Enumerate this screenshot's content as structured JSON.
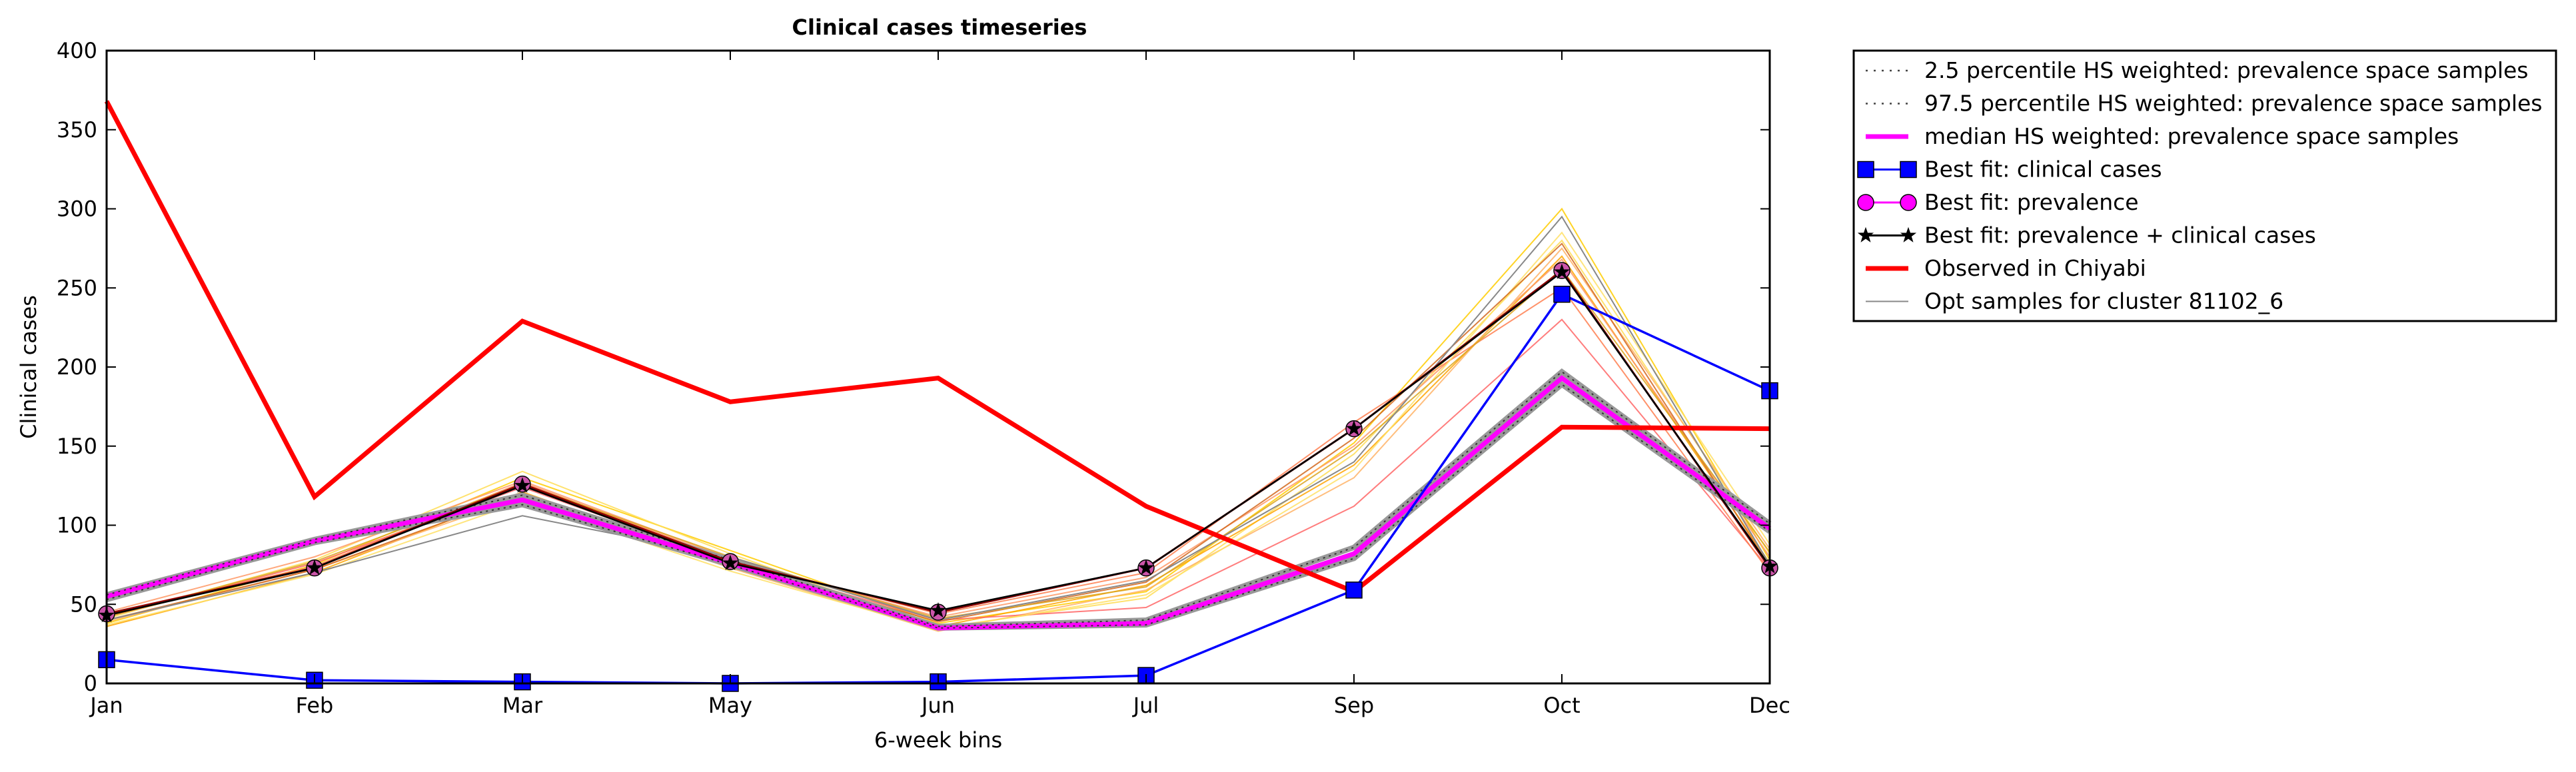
{
  "chart_data": {
    "type": "line",
    "title": "Clinical cases timeseries",
    "xlabel": "6-week bins",
    "ylabel": "Clinical cases",
    "categories": [
      "Jan",
      "Feb",
      "Mar",
      "May",
      "Jun",
      "Jul",
      "Sep",
      "Oct",
      "Dec"
    ],
    "yticks": [
      0,
      50,
      100,
      150,
      200,
      250,
      300,
      350,
      400
    ],
    "ylim": [
      0,
      400
    ],
    "grid": false,
    "legend_position": "outside-right",
    "series": [
      {
        "name": "2.5 percentile HS weighted: prevalence space samples",
        "color": "#555555",
        "style": "dotted",
        "values": [
          53,
          89,
          113,
          75,
          35,
          37,
          79,
          189,
          96
        ]
      },
      {
        "name": "97.5 percentile HS weighted: prevalence space samples",
        "color": "#555555",
        "style": "dotted",
        "values": [
          56,
          91,
          119,
          78,
          36,
          40,
          86,
          197,
          101
        ]
      },
      {
        "name": "median HS weighted: prevalence space samples",
        "color": "#ff00ff",
        "style": "thick",
        "values": [
          55,
          90,
          116,
          76,
          35,
          38,
          82,
          193,
          98
        ]
      },
      {
        "name": "Best fit: clinical cases",
        "color": "#0000ff",
        "marker": "square",
        "values": [
          15,
          2,
          1,
          0,
          1,
          5,
          59,
          246,
          185
        ]
      },
      {
        "name": "Best fit: prevalence",
        "color": "#ff00ff",
        "marker": "circle",
        "values": [
          44,
          73,
          126,
          77,
          45,
          73,
          161,
          261,
          73
        ]
      },
      {
        "name": "Best fit: prevalence + clinical cases",
        "color": "#000000",
        "marker": "star",
        "values": [
          43,
          73,
          125,
          76,
          46,
          73,
          161,
          260,
          74
        ]
      },
      {
        "name": "Observed in Chiyabi",
        "color": "#ff0000",
        "style": "thick",
        "values": [
          368,
          118,
          229,
          178,
          193,
          112,
          58,
          162,
          161
        ]
      },
      {
        "name": "Opt samples for cluster 81102_6",
        "color": "#888888",
        "values": [
          40,
          70,
          106,
          80,
          40,
          65,
          140,
          295,
          75
        ]
      }
    ],
    "opt_samples": [
      {
        "color": "#ffcc00",
        "values": [
          38,
          75,
          130,
          84,
          38,
          58,
          152,
          300,
          78
        ]
      },
      {
        "color": "#ffdd55",
        "values": [
          41,
          78,
          134,
          82,
          35,
          54,
          145,
          280,
          82
        ]
      },
      {
        "color": "#ffa500",
        "values": [
          36,
          70,
          121,
          75,
          36,
          62,
          138,
          270,
          76
        ]
      },
      {
        "color": "#ff9966",
        "values": [
          45,
          80,
          128,
          79,
          42,
          67,
          150,
          268,
          80
        ]
      },
      {
        "color": "#ffb366",
        "values": [
          39,
          72,
          118,
          73,
          33,
          59,
          130,
          275,
          85
        ]
      },
      {
        "color": "#ff6666",
        "values": [
          42,
          76,
          124,
          77,
          40,
          48,
          112,
          230,
          72
        ]
      },
      {
        "color": "#ff7f50",
        "values": [
          44,
          74,
          127,
          78,
          44,
          70,
          165,
          250,
          70
        ]
      },
      {
        "color": "#ffe066",
        "values": [
          37,
          69,
          115,
          71,
          34,
          56,
          135,
          285,
          88
        ]
      },
      {
        "color": "#d2691e",
        "values": [
          40,
          72,
          120,
          76,
          39,
          64,
          155,
          278,
          74
        ]
      },
      {
        "color": "#daa520",
        "values": [
          42,
          77,
          126,
          80,
          41,
          61,
          148,
          262,
          83
        ]
      }
    ]
  }
}
